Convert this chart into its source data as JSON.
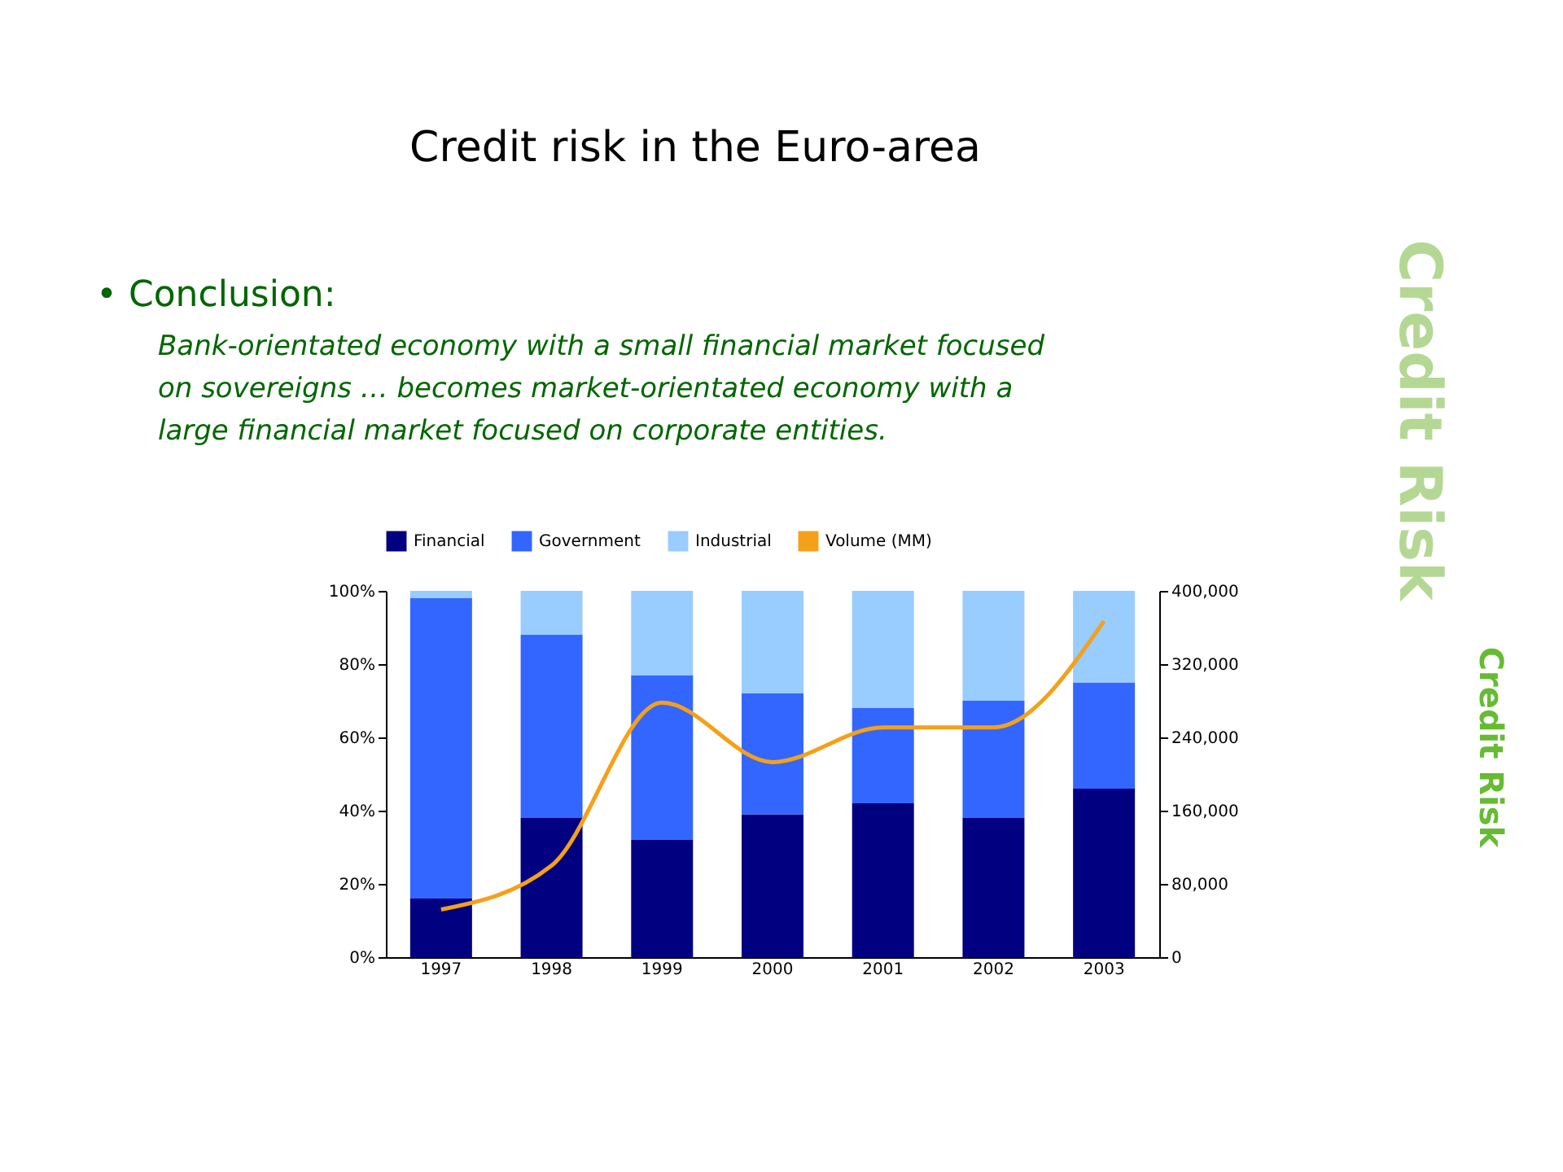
{
  "chart_data": {
    "type": "bar",
    "stacked": true,
    "title": "Credit risk in the Euro-area",
    "subtitle": "Bank-orientated economy with a small financial market focused\non sovereigns … becomes market-orientated economy with a\nlarge financial market focused on corporate entities.",
    "annotations": [
      "• Conclusion:",
      "Credit Risk",
      "Credit Risk"
    ],
    "categories": [
      "1997",
      "1998",
      "1999",
      "2000",
      "2001",
      "2002",
      "2003"
    ],
    "series": [
      {
        "name": "Financial",
        "color": "#000080",
        "values": [
          16,
          38,
          32,
          39,
          42,
          38,
          46
        ]
      },
      {
        "name": "Government",
        "color": "#3366ff",
        "values": [
          82,
          50,
          45,
          33,
          26,
          32,
          29
        ]
      },
      {
        "name": "Industrial",
        "color": "#99ccff",
        "values": [
          2,
          12,
          23,
          28,
          32,
          30,
          25
        ]
      },
      {
        "name": "Volume (MM)",
        "type": "line",
        "axis": "y2",
        "color": "#f5a01a",
        "values": [
          52000,
          100000,
          278000,
          213000,
          251000,
          251000,
          367000
        ]
      }
    ],
    "ylim": [
      0,
      100
    ],
    "yticks": [
      {
        "value": 0,
        "label": "0%"
      },
      {
        "value": 20,
        "label": "20%"
      },
      {
        "value": 40,
        "label": "40%"
      },
      {
        "value": 60,
        "label": "60%"
      },
      {
        "value": 80,
        "label": "80%"
      },
      {
        "value": 100,
        "label": "100%"
      }
    ],
    "y2lim": [
      0,
      400000
    ],
    "y2ticks": [
      {
        "value": 0,
        "label": "0"
      },
      {
        "value": 80000,
        "label": "80,000"
      },
      {
        "value": 160000,
        "label": "160,000"
      },
      {
        "value": 240000,
        "label": "240,000"
      },
      {
        "value": 320000,
        "label": "320,000"
      },
      {
        "value": 400000,
        "label": "400,000"
      }
    ],
    "grid": false,
    "legend": "top",
    "marker": "none",
    "line_style": "solid"
  }
}
